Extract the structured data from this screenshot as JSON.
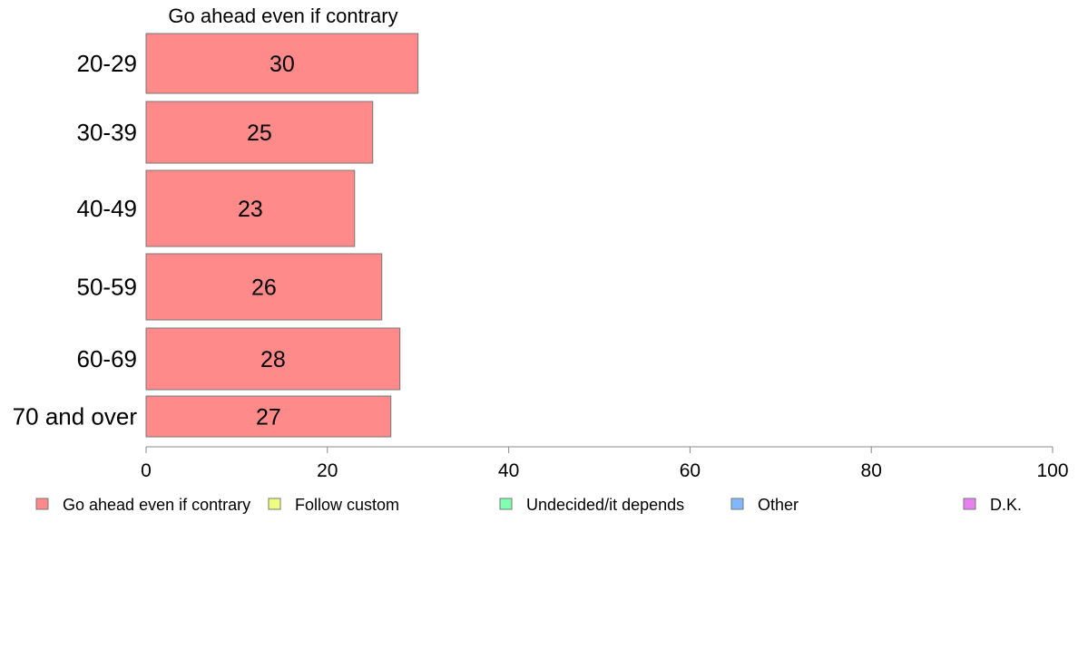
{
  "chart_data": {
    "type": "bar",
    "orientation": "horizontal",
    "title": "Go ahead even if contrary",
    "categories": [
      "20-29",
      "30-39",
      "40-49",
      "50-59",
      "60-69",
      "70 and over"
    ],
    "series": [
      {
        "name": "Go ahead even if contrary",
        "values": [
          30,
          25,
          23,
          26,
          28,
          27
        ],
        "color": "#FF8A8A"
      }
    ],
    "xlim": [
      0,
      100
    ],
    "xticks": [
      0,
      20,
      40,
      60,
      80,
      100
    ],
    "xlabel": "",
    "ylabel": "",
    "grid": false,
    "legend": {
      "placement": "bottom",
      "entries": [
        {
          "label": "Go ahead even if contrary",
          "color": "#FF8A8A"
        },
        {
          "label": "Follow custom",
          "color": "#EEFF80"
        },
        {
          "label": "Undecided/it depends",
          "color": "#80FFB0"
        },
        {
          "label": "Other",
          "color": "#80B8FF"
        },
        {
          "label": "D.K.",
          "color": "#E880F0"
        }
      ]
    }
  }
}
